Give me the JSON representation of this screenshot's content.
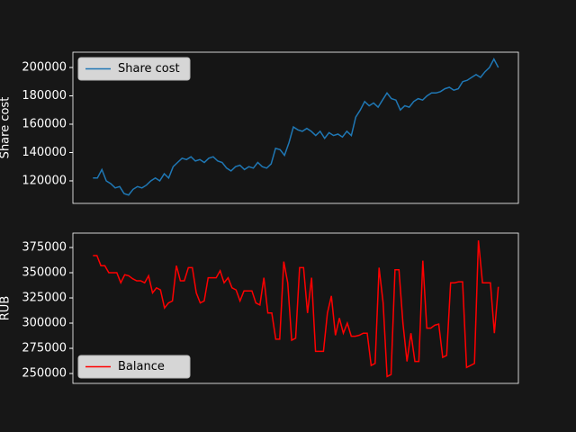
{
  "chart_data": [
    {
      "type": "line",
      "ylabel": "Share cost",
      "ylim": [
        104100,
        210800
      ],
      "yticks": [
        120000,
        140000,
        160000,
        180000,
        200000
      ],
      "legend": "upper left",
      "series": [
        {
          "name": "Share cost",
          "color": "#1f77b4",
          "values": [
            122000,
            122000,
            128000,
            120000,
            118000,
            115000,
            116000,
            111000,
            110000,
            114000,
            116000,
            115000,
            117000,
            120000,
            122000,
            120000,
            125000,
            122000,
            130000,
            133000,
            136000,
            135000,
            137000,
            134000,
            135000,
            133000,
            136000,
            137000,
            134000,
            133000,
            129000,
            127000,
            130000,
            131000,
            128000,
            130000,
            129000,
            133000,
            130000,
            129000,
            132000,
            143000,
            142000,
            138000,
            147000,
            158000,
            156000,
            155000,
            157000,
            155000,
            152000,
            155000,
            150000,
            154000,
            152000,
            153000,
            151000,
            155000,
            152000,
            165000,
            170000,
            176000,
            173000,
            175000,
            172000,
            177000,
            182000,
            178000,
            177000,
            170000,
            173000,
            172000,
            176000,
            178000,
            177000,
            180000,
            182000,
            182000,
            183000,
            185000,
            186000,
            184000,
            185000,
            190000,
            191000,
            193000,
            195000,
            193000,
            197000,
            200000,
            206000,
            200000
          ]
        }
      ]
    },
    {
      "type": "line",
      "ylabel": "RUB",
      "ylim": [
        240200,
        389300
      ],
      "yticks": [
        250000,
        275000,
        300000,
        325000,
        350000,
        375000
      ],
      "legend": "lower left",
      "series": [
        {
          "name": "Balance",
          "color": "#ff0000",
          "values": [
            367000,
            367000,
            357000,
            357000,
            350000,
            350000,
            350000,
            340000,
            348000,
            347000,
            344000,
            342000,
            342000,
            340000,
            347000,
            330000,
            335000,
            333000,
            315000,
            320000,
            322000,
            357000,
            342000,
            342000,
            355000,
            355000,
            330000,
            320000,
            322000,
            345000,
            345000,
            345000,
            352000,
            340000,
            345000,
            335000,
            333000,
            322000,
            332000,
            332000,
            332000,
            320000,
            318000,
            345000,
            310000,
            310000,
            284000,
            284000,
            361000,
            340000,
            283000,
            285000,
            355000,
            355000,
            310000,
            345000,
            272000,
            272000,
            272000,
            310000,
            327000,
            288000,
            305000,
            290000,
            300000,
            287000,
            287000,
            288000,
            290000,
            290000,
            258000,
            260000,
            355000,
            320000,
            247000,
            249000,
            353000,
            353000,
            300000,
            262000,
            290000,
            262000,
            262000,
            362000,
            295000,
            295000,
            298000,
            299000,
            266000,
            268000,
            340000,
            340000,
            341000,
            341000,
            256000,
            258000,
            260000,
            382000,
            340000,
            340000,
            340000,
            290000,
            336000
          ]
        }
      ]
    }
  ]
}
